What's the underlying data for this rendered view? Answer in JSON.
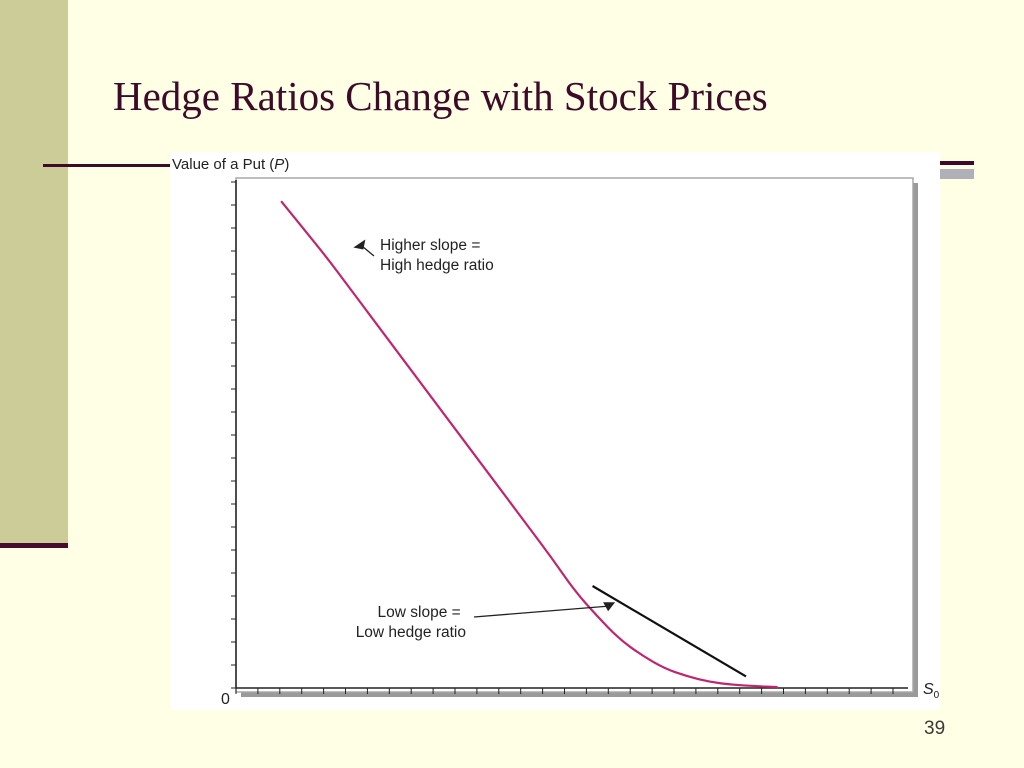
{
  "slide": {
    "title": "Hedge Ratios Change with Stock Prices",
    "number": "39"
  },
  "colors": {
    "background": "#FFFFE5",
    "accent_band": "#CCCC99",
    "title_text": "#3D0A29",
    "curve": "#C0266E",
    "tangent": "#111111"
  },
  "chart_data": {
    "type": "line",
    "title": "",
    "ylabel_prefix": "Value of a Put (",
    "ylabel_var": "P",
    "ylabel_suffix": ")",
    "xlabel_var": "S",
    "xlabel_sub": "0",
    "origin_label": "0",
    "xlim": [
      0,
      15
    ],
    "ylim": [
      0,
      11
    ],
    "grid": false,
    "series": [
      {
        "x": [
          1,
          1.5,
          2,
          2.5,
          3,
          3.5,
          4,
          4.5,
          5,
          5.5,
          6,
          6.5,
          7,
          7.5,
          8,
          8.5,
          9,
          9.5,
          10,
          10.5,
          11,
          11.5,
          12
        ],
        "values": [
          10.5,
          9.9,
          9.3,
          8.65,
          8.0,
          7.35,
          6.7,
          6.05,
          5.4,
          4.75,
          4.1,
          3.45,
          2.8,
          2.1,
          1.55,
          1.05,
          0.7,
          0.42,
          0.25,
          0.13,
          0.07,
          0.04,
          0.02
        ]
      }
    ],
    "tangent_line": {
      "x": [
        7.9,
        11.3
      ],
      "y": [
        2.2,
        0.25
      ]
    },
    "annotations": [
      {
        "line1": "Higher slope =",
        "line2": "High hedge ratio",
        "target_x": 2.6,
        "target_y": 9.5
      },
      {
        "line1": "Low slope =",
        "line2": "Low hedge ratio",
        "target_x": 8.4,
        "target_y": 1.85
      }
    ]
  }
}
